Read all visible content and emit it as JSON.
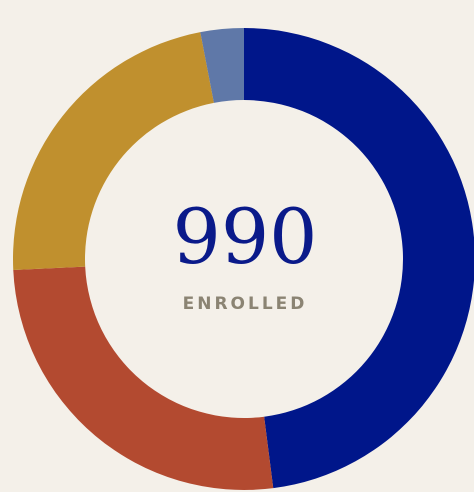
{
  "chart_data": {
    "type": "donut",
    "values": [
      475,
      260,
      225,
      30
    ],
    "colors": [
      "#00168a",
      "#b34a30",
      "#c0902e",
      "#5f78a8"
    ],
    "center_value": 990,
    "center_label": "ENROLLED"
  }
}
